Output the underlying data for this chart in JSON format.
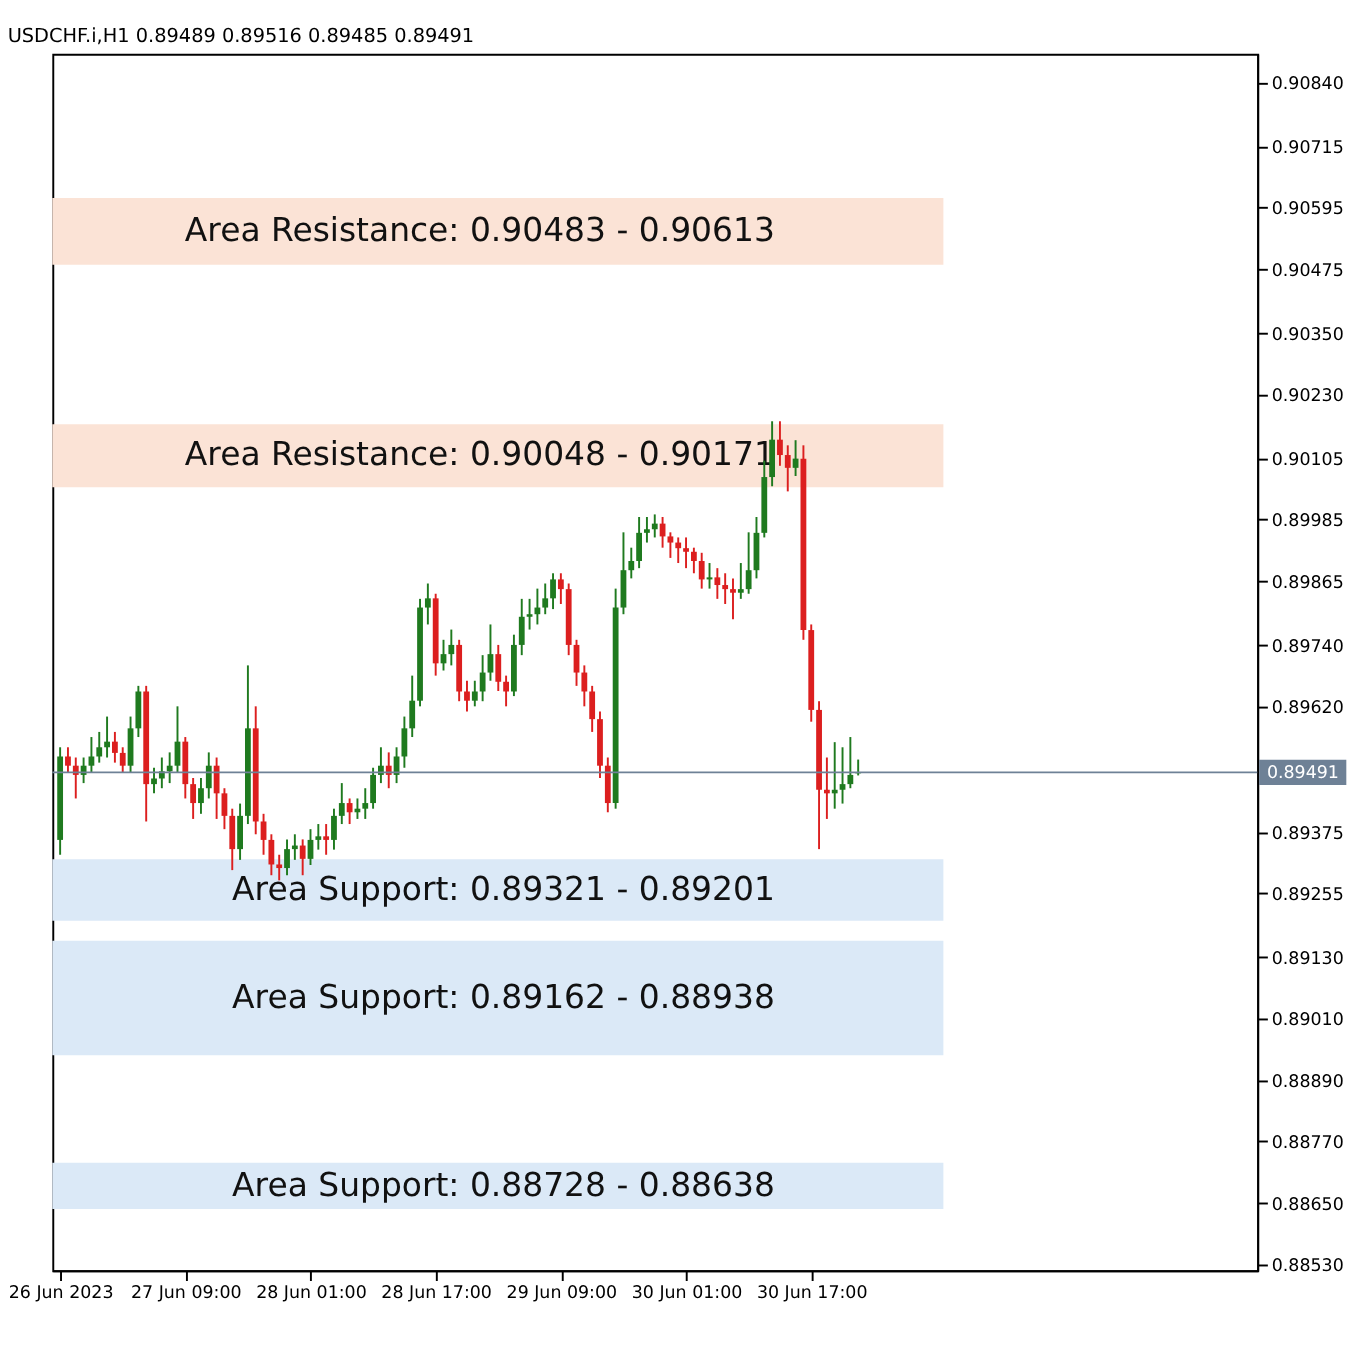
{
  "chart_data": {
    "type": "candlestick",
    "title": "USDCHF.i,H1  0.89489 0.89516 0.89485 0.89491",
    "x": [
      "2023-06-26T17:00",
      "2023-06-26T18:00",
      "2023-06-26T19:00",
      "2023-06-26T20:00",
      "2023-06-26T21:00",
      "2023-06-26T22:00",
      "2023-06-26T23:00",
      "2023-06-27T00:00",
      "2023-06-27T01:00",
      "2023-06-27T02:00",
      "2023-06-27T03:00",
      "2023-06-27T04:00",
      "2023-06-27T05:00",
      "2023-06-27T06:00",
      "2023-06-27T07:00",
      "2023-06-27T08:00",
      "2023-06-27T09:00",
      "2023-06-27T10:00",
      "2023-06-27T11:00",
      "2023-06-27T12:00",
      "2023-06-27T13:00",
      "2023-06-27T14:00",
      "2023-06-27T15:00",
      "2023-06-27T16:00",
      "2023-06-27T17:00",
      "2023-06-27T18:00",
      "2023-06-27T19:00",
      "2023-06-27T20:00",
      "2023-06-27T21:00",
      "2023-06-27T22:00",
      "2023-06-27T23:00",
      "2023-06-28T00:00",
      "2023-06-28T01:00",
      "2023-06-28T02:00",
      "2023-06-28T03:00",
      "2023-06-28T04:00",
      "2023-06-28T05:00",
      "2023-06-28T06:00",
      "2023-06-28T07:00",
      "2023-06-28T08:00",
      "2023-06-28T09:00",
      "2023-06-28T10:00",
      "2023-06-28T11:00",
      "2023-06-28T12:00",
      "2023-06-28T13:00",
      "2023-06-28T14:00",
      "2023-06-28T15:00",
      "2023-06-28T16:00",
      "2023-06-28T17:00",
      "2023-06-28T18:00",
      "2023-06-28T19:00",
      "2023-06-28T20:00",
      "2023-06-28T21:00",
      "2023-06-28T22:00",
      "2023-06-28T23:00",
      "2023-06-29T00:00",
      "2023-06-29T01:00",
      "2023-06-29T02:00",
      "2023-06-29T03:00",
      "2023-06-29T04:00",
      "2023-06-29T05:00",
      "2023-06-29T06:00",
      "2023-06-29T07:00",
      "2023-06-29T08:00",
      "2023-06-29T09:00",
      "2023-06-29T10:00",
      "2023-06-29T11:00",
      "2023-06-29T12:00",
      "2023-06-29T13:00",
      "2023-06-29T14:00",
      "2023-06-29T15:00",
      "2023-06-29T16:00",
      "2023-06-29T17:00",
      "2023-06-29T18:00",
      "2023-06-29T19:00",
      "2023-06-29T20:00",
      "2023-06-29T21:00",
      "2023-06-29T22:00",
      "2023-06-29T23:00",
      "2023-06-30T00:00",
      "2023-06-30T01:00",
      "2023-06-30T02:00",
      "2023-06-30T03:00",
      "2023-06-30T04:00",
      "2023-06-30T05:00",
      "2023-06-30T06:00",
      "2023-06-30T07:00",
      "2023-06-30T08:00",
      "2023-06-30T09:00",
      "2023-06-30T10:00",
      "2023-06-30T11:00",
      "2023-06-30T12:00",
      "2023-06-30T13:00",
      "2023-06-30T14:00",
      "2023-06-30T15:00",
      "2023-06-30T16:00",
      "2023-06-30T17:00",
      "2023-06-30T18:00",
      "2023-06-30T19:00",
      "2023-06-30T20:00",
      "2023-06-30T21:00",
      "2023-06-30T22:00",
      "2023-06-30T23:00"
    ],
    "ohlc": [
      [
        0.89359,
        0.8954,
        0.8933,
        0.89522
      ],
      [
        0.89522,
        0.8954,
        0.8949,
        0.89504
      ],
      [
        0.89504,
        0.8952,
        0.8944,
        0.89486
      ],
      [
        0.89486,
        0.8952,
        0.8947,
        0.89504
      ],
      [
        0.89504,
        0.8956,
        0.8949,
        0.89522
      ],
      [
        0.89522,
        0.8957,
        0.8951,
        0.8954
      ],
      [
        0.8954,
        0.896,
        0.8952,
        0.89551
      ],
      [
        0.89551,
        0.8957,
        0.8951,
        0.89529
      ],
      [
        0.89529,
        0.8954,
        0.8949,
        0.89504
      ],
      [
        0.89504,
        0.896,
        0.8949,
        0.89577
      ],
      [
        0.89577,
        0.8966,
        0.8956,
        0.89649
      ],
      [
        0.89649,
        0.8966,
        0.89395,
        0.89468
      ],
      [
        0.89468,
        0.895,
        0.8945,
        0.89479
      ],
      [
        0.89479,
        0.8952,
        0.8946,
        0.89493
      ],
      [
        0.89493,
        0.8953,
        0.8947,
        0.89504
      ],
      [
        0.89504,
        0.8962,
        0.8949,
        0.89551
      ],
      [
        0.89551,
        0.8956,
        0.8944,
        0.89468
      ],
      [
        0.89468,
        0.8948,
        0.894,
        0.89431
      ],
      [
        0.89431,
        0.8948,
        0.8941,
        0.8946
      ],
      [
        0.8946,
        0.8953,
        0.8944,
        0.89504
      ],
      [
        0.89504,
        0.8952,
        0.894,
        0.8945
      ],
      [
        0.8945,
        0.8946,
        0.8938,
        0.89406
      ],
      [
        0.89406,
        0.8942,
        0.893,
        0.89341
      ],
      [
        0.89341,
        0.8943,
        0.8932,
        0.89406
      ],
      [
        0.89406,
        0.897,
        0.8939,
        0.89577
      ],
      [
        0.89577,
        0.8962,
        0.8937,
        0.89395
      ],
      [
        0.89395,
        0.8941,
        0.8933,
        0.89359
      ],
      [
        0.89359,
        0.8937,
        0.8929,
        0.89311
      ],
      [
        0.89311,
        0.8933,
        0.8928,
        0.89304
      ],
      [
        0.89304,
        0.8936,
        0.8929,
        0.89341
      ],
      [
        0.89341,
        0.8937,
        0.8932,
        0.89348
      ],
      [
        0.89348,
        0.8936,
        0.8929,
        0.89322
      ],
      [
        0.89322,
        0.8938,
        0.8931,
        0.89359
      ],
      [
        0.89359,
        0.8939,
        0.8934,
        0.89366
      ],
      [
        0.89366,
        0.8939,
        0.8933,
        0.89359
      ],
      [
        0.89359,
        0.8942,
        0.8934,
        0.89406
      ],
      [
        0.89406,
        0.8947,
        0.8939,
        0.89431
      ],
      [
        0.89431,
        0.8944,
        0.8939,
        0.89413
      ],
      [
        0.89413,
        0.8944,
        0.894,
        0.8942
      ],
      [
        0.8942,
        0.8946,
        0.894,
        0.89431
      ],
      [
        0.89431,
        0.895,
        0.8942,
        0.89486
      ],
      [
        0.89486,
        0.8954,
        0.8947,
        0.89504
      ],
      [
        0.89504,
        0.8953,
        0.8946,
        0.89486
      ],
      [
        0.89486,
        0.8954,
        0.8947,
        0.89522
      ],
      [
        0.89522,
        0.896,
        0.895,
        0.89577
      ],
      [
        0.89577,
        0.8968,
        0.8956,
        0.89631
      ],
      [
        0.89631,
        0.8983,
        0.8962,
        0.89813
      ],
      [
        0.89813,
        0.8986,
        0.8978,
        0.89831
      ],
      [
        0.89831,
        0.8984,
        0.8968,
        0.89704
      ],
      [
        0.89704,
        0.8975,
        0.8969,
        0.89722
      ],
      [
        0.89722,
        0.8977,
        0.897,
        0.8974
      ],
      [
        0.8974,
        0.8975,
        0.8963,
        0.89649
      ],
      [
        0.89649,
        0.8967,
        0.8961,
        0.89631
      ],
      [
        0.89631,
        0.8967,
        0.8962,
        0.89649
      ],
      [
        0.89649,
        0.8972,
        0.8963,
        0.89686
      ],
      [
        0.89686,
        0.8978,
        0.8967,
        0.89722
      ],
      [
        0.89722,
        0.8974,
        0.8965,
        0.89668
      ],
      [
        0.89668,
        0.8968,
        0.8962,
        0.89649
      ],
      [
        0.89649,
        0.8976,
        0.8964,
        0.8974
      ],
      [
        0.8974,
        0.8983,
        0.8972,
        0.89795
      ],
      [
        0.89795,
        0.8983,
        0.8977,
        0.898
      ],
      [
        0.898,
        0.8985,
        0.8978,
        0.89813
      ],
      [
        0.89813,
        0.8986,
        0.898,
        0.89831
      ],
      [
        0.89831,
        0.8988,
        0.8981,
        0.89868
      ],
      [
        0.89868,
        0.8988,
        0.8982,
        0.89849
      ],
      [
        0.89849,
        0.8986,
        0.8972,
        0.8974
      ],
      [
        0.8974,
        0.8975,
        0.8966,
        0.89686
      ],
      [
        0.89686,
        0.897,
        0.8962,
        0.89649
      ],
      [
        0.89649,
        0.8966,
        0.8957,
        0.89595
      ],
      [
        0.89595,
        0.8961,
        0.8948,
        0.89504
      ],
      [
        0.89504,
        0.8952,
        0.89413,
        0.89431
      ],
      [
        0.89431,
        0.8985,
        0.8942,
        0.89813
      ],
      [
        0.89813,
        0.8996,
        0.898,
        0.89886
      ],
      [
        0.89886,
        0.8993,
        0.8987,
        0.89904
      ],
      [
        0.89904,
        0.8999,
        0.8989,
        0.89959
      ],
      [
        0.89959,
        0.8999,
        0.8994,
        0.89966
      ],
      [
        0.89966,
        0.89995,
        0.8995,
        0.89977
      ],
      [
        0.89977,
        0.8999,
        0.8993,
        0.89952
      ],
      [
        0.89952,
        0.8996,
        0.8991,
        0.8994
      ],
      [
        0.8994,
        0.8995,
        0.899,
        0.89929
      ],
      [
        0.89929,
        0.8995,
        0.8989,
        0.89922
      ],
      [
        0.89922,
        0.8993,
        0.8988,
        0.89904
      ],
      [
        0.89904,
        0.8992,
        0.8985,
        0.89868
      ],
      [
        0.89868,
        0.899,
        0.8985,
        0.89872
      ],
      [
        0.89872,
        0.8989,
        0.8983,
        0.89857
      ],
      [
        0.89857,
        0.8988,
        0.8982,
        0.89849
      ],
      [
        0.89849,
        0.8987,
        0.8979,
        0.89842
      ],
      [
        0.89842,
        0.899,
        0.8983,
        0.89849
      ],
      [
        0.89849,
        0.8996,
        0.8984,
        0.89886
      ],
      [
        0.89886,
        0.8999,
        0.8987,
        0.89959
      ],
      [
        0.89959,
        0.901,
        0.8995,
        0.90068
      ],
      [
        0.90068,
        0.90177,
        0.9005,
        0.90141
      ],
      [
        0.90141,
        0.90177,
        0.9009,
        0.90111
      ],
      [
        0.90111,
        0.9013,
        0.9004,
        0.90086
      ],
      [
        0.90086,
        0.9014,
        0.9007,
        0.90104
      ],
      [
        0.90104,
        0.9013,
        0.8975,
        0.89769
      ],
      [
        0.89769,
        0.8978,
        0.8959,
        0.89613
      ],
      [
        0.89613,
        0.8963,
        0.89341,
        0.89457
      ],
      [
        0.89457,
        0.8952,
        0.894,
        0.8945
      ],
      [
        0.8945,
        0.8955,
        0.8942,
        0.89457
      ],
      [
        0.89457,
        0.8954,
        0.8943,
        0.89468
      ],
      [
        0.89468,
        0.8956,
        0.8946,
        0.89486
      ],
      [
        0.89489,
        0.89516,
        0.89485,
        0.89491
      ]
    ],
    "colors": [
      "#1f7a1f",
      "#dc1f1f",
      "#dc1f1f",
      "#1f7a1f",
      "#1f7a1f",
      "#1f7a1f",
      "#1f7a1f",
      "#dc1f1f",
      "#dc1f1f",
      "#1f7a1f",
      "#1f7a1f",
      "#dc1f1f",
      "#1f7a1f",
      "#1f7a1f",
      "#1f7a1f",
      "#1f7a1f",
      "#dc1f1f",
      "#dc1f1f",
      "#1f7a1f",
      "#1f7a1f",
      "#dc1f1f",
      "#dc1f1f",
      "#dc1f1f",
      "#1f7a1f",
      "#1f7a1f",
      "#dc1f1f",
      "#dc1f1f",
      "#dc1f1f",
      "#dc1f1f",
      "#1f7a1f",
      "#1f7a1f",
      "#dc1f1f",
      "#1f7a1f",
      "#1f7a1f",
      "#dc1f1f",
      "#1f7a1f",
      "#1f7a1f",
      "#dc1f1f",
      "#1f7a1f",
      "#1f7a1f",
      "#1f7a1f",
      "#1f7a1f",
      "#dc1f1f",
      "#1f7a1f",
      "#1f7a1f",
      "#1f7a1f",
      "#1f7a1f",
      "#1f7a1f",
      "#dc1f1f",
      "#1f7a1f",
      "#1f7a1f",
      "#dc1f1f",
      "#dc1f1f",
      "#1f7a1f",
      "#1f7a1f",
      "#1f7a1f",
      "#dc1f1f",
      "#dc1f1f",
      "#1f7a1f",
      "#1f7a1f",
      "#1f7a1f",
      "#1f7a1f",
      "#1f7a1f",
      "#1f7a1f",
      "#dc1f1f",
      "#dc1f1f",
      "#dc1f1f",
      "#dc1f1f",
      "#dc1f1f",
      "#dc1f1f",
      "#dc1f1f",
      "#1f7a1f",
      "#1f7a1f",
      "#1f7a1f",
      "#1f7a1f",
      "#1f7a1f",
      "#1f7a1f",
      "#dc1f1f",
      "#dc1f1f",
      "#dc1f1f",
      "#dc1f1f",
      "#dc1f1f",
      "#dc1f1f",
      "#1f7a1f",
      "#dc1f1f",
      "#dc1f1f",
      "#dc1f1f",
      "#1f7a1f",
      "#1f7a1f",
      "#1f7a1f",
      "#1f7a1f",
      "#1f7a1f",
      "#dc1f1f",
      "#dc1f1f",
      "#1f7a1f",
      "#dc1f1f",
      "#dc1f1f",
      "#dc1f1f",
      "#dc1f1f",
      "#1f7a1f",
      "#1f7a1f",
      "#1f7a1f",
      "#1f7a1f"
    ],
    "xlim": [
      "2023-06-26T16:00",
      "2023-07-03T02:00"
    ],
    "xticks": [
      {
        "value": "2023-06-26T17:00",
        "label": "26 Jun 2023"
      },
      {
        "value": "2023-06-27T09:00",
        "label": "27 Jun 09:00"
      },
      {
        "value": "2023-06-28T01:00",
        "label": "28 Jun 01:00"
      },
      {
        "value": "2023-06-28T17:00",
        "label": "28 Jun 17:00"
      },
      {
        "value": "2023-06-29T09:00",
        "label": "29 Jun 09:00"
      },
      {
        "value": "2023-06-30T01:00",
        "label": "30 Jun 01:00"
      },
      {
        "value": "2023-06-30T17:00",
        "label": "30 Jun 17:00"
      }
    ],
    "ylim": [
      0.88518,
      0.90895
    ],
    "yticks": [
      {
        "value": 0.9084,
        "label": "0.90840"
      },
      {
        "value": 0.90715,
        "label": "0.90715"
      },
      {
        "value": 0.90595,
        "label": "0.90595"
      },
      {
        "value": 0.90475,
        "label": "0.90475"
      },
      {
        "value": 0.9035,
        "label": "0.90350"
      },
      {
        "value": 0.9023,
        "label": "0.90230"
      },
      {
        "value": 0.90105,
        "label": "0.90105"
      },
      {
        "value": 0.89985,
        "label": "0.89985"
      },
      {
        "value": 0.89865,
        "label": "0.89865"
      },
      {
        "value": 0.8974,
        "label": "0.89740"
      },
      {
        "value": 0.8962,
        "label": "0.89620"
      },
      {
        "value": 0.89375,
        "label": "0.89375"
      },
      {
        "value": 0.89255,
        "label": "0.89255"
      },
      {
        "value": 0.8913,
        "label": "0.89130"
      },
      {
        "value": 0.8901,
        "label": "0.89010"
      },
      {
        "value": 0.8889,
        "label": "0.88890"
      },
      {
        "value": 0.8877,
        "label": "0.88770"
      },
      {
        "value": 0.8865,
        "label": "0.88650"
      },
      {
        "value": 0.8853,
        "label": "0.88530"
      }
    ],
    "ref_lines": [
      {
        "axis": "y",
        "value": 0.89491,
        "label": "0.89491",
        "color": "#6e8196"
      }
    ],
    "bands": [
      {
        "axis": "y",
        "from": 0.90483,
        "to": 0.90613,
        "label": "Area Resistance: 0.90483 - 0.90613",
        "color": "#fbe3d6"
      },
      {
        "axis": "y",
        "from": 0.90048,
        "to": 0.90171,
        "label": "Area Resistance: 0.90048 - 0.90171",
        "color": "#fbe3d6"
      },
      {
        "axis": "y",
        "from": 0.89201,
        "to": 0.89321,
        "label": "Area Support: 0.89321 - 0.89201",
        "color": "#dbe9f7"
      },
      {
        "axis": "y",
        "from": 0.88938,
        "to": 0.89162,
        "label": "Area Support: 0.89162 - 0.88938",
        "color": "#dbe9f7"
      },
      {
        "axis": "y",
        "from": 0.88638,
        "to": 0.88728,
        "label": "Area Support: 0.88728 - 0.88638",
        "color": "#dbe9f7"
      }
    ],
    "grid": false
  }
}
